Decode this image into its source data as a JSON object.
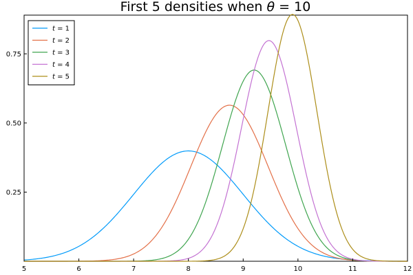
{
  "chart_data": {
    "type": "line",
    "title": "First 5 densities when θ = 10",
    "title_parts": {
      "prefix": "First 5 densities when ",
      "var": "θ",
      "suffix": " = 10"
    },
    "xlabel": "",
    "ylabel": "",
    "xlim": [
      5,
      12
    ],
    "ylim": [
      0,
      0.89
    ],
    "xticks": [
      5,
      6,
      7,
      8,
      9,
      10,
      11,
      12
    ],
    "xtick_labels": [
      "5",
      "6",
      "7",
      "8",
      "9",
      "10",
      "11",
      "12"
    ],
    "yticks": [
      0.25,
      0.5,
      0.75
    ],
    "ytick_labels": [
      "0.25",
      "0.50",
      "0.75"
    ],
    "grid": false,
    "legend_position": "top-left",
    "series": [
      {
        "name": "t = 1",
        "name_parts": {
          "var": "t",
          "rest": " = 1"
        },
        "color": "#009AFA",
        "distribution": "normal",
        "mean": 8.0,
        "sd": 1.0,
        "peak": 0.4
      },
      {
        "name": "t = 2",
        "name_parts": {
          "var": "t",
          "rest": " = 2"
        },
        "color": "#E36F47",
        "distribution": "normal",
        "mean": 8.75,
        "sd": 0.707,
        "peak": 0.564
      },
      {
        "name": "t = 3",
        "name_parts": {
          "var": "t",
          "rest": " = 3"
        },
        "color": "#3EA44E",
        "distribution": "normal",
        "mean": 9.2,
        "sd": 0.577,
        "peak": 0.691
      },
      {
        "name": "t = 4",
        "name_parts": {
          "var": "t",
          "rest": " = 4"
        },
        "color": "#C371D2",
        "distribution": "normal",
        "mean": 9.47,
        "sd": 0.5,
        "peak": 0.798
      },
      {
        "name": "t = 5",
        "name_parts": {
          "var": "t",
          "rest": " = 5"
        },
        "color": "#AC8D18",
        "distribution": "normal",
        "mean": 9.9,
        "sd": 0.447,
        "peak": 0.892
      }
    ]
  }
}
